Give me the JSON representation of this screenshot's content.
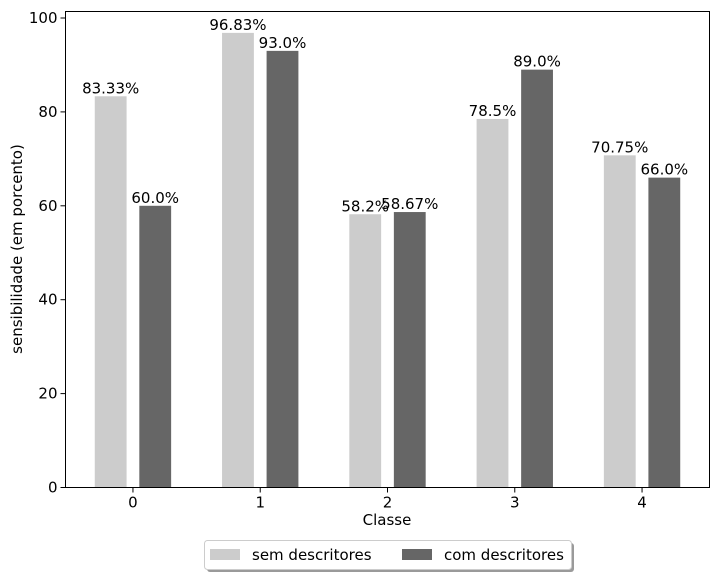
{
  "chart_data": {
    "type": "bar",
    "categories": [
      "0",
      "1",
      "2",
      "3",
      "4"
    ],
    "series": [
      {
        "name": "sem descritores",
        "values": [
          83.33,
          96.83,
          58.2,
          78.5,
          70.75
        ],
        "labels": [
          "83.33%",
          "96.83%",
          "58.2%",
          "78.5%",
          "70.75%"
        ],
        "color": "#cccccc"
      },
      {
        "name": "com descritores",
        "values": [
          60.0,
          93.0,
          58.67,
          89.0,
          66.0
        ],
        "labels": [
          "60.0%",
          "93.0%",
          "58.67%",
          "89.0%",
          "66.0%"
        ],
        "color": "#666666"
      }
    ],
    "xlabel": "Classe",
    "ylabel": "sensibilidade (em porcento)",
    "ylim": [
      0,
      100
    ],
    "yticks": [
      0,
      20,
      40,
      60,
      80,
      100
    ],
    "grid": false,
    "legend_position": "bottom-center"
  }
}
